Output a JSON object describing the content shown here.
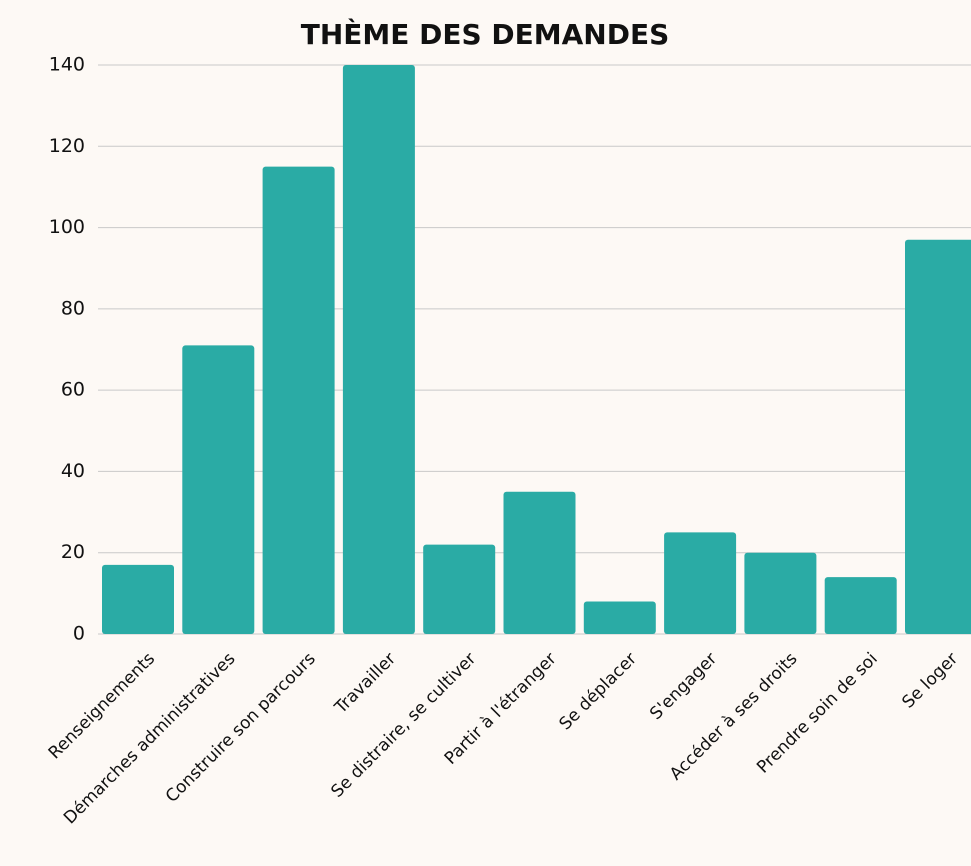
{
  "chart_data": {
    "type": "bar",
    "title": "THÈME DES DEMANDES",
    "categories": [
      "Renseignements",
      "Démarches administratives",
      "Construire son parcours",
      "Travailler",
      "Se distraire, se cultiver",
      "Partir à l'étranger",
      "Se déplacer",
      "S'engager",
      "Accéder à ses droits",
      "Prendre soin de soi",
      "Se loger"
    ],
    "values": [
      17,
      71,
      115,
      140,
      22,
      35,
      8,
      25,
      20,
      14,
      97
    ],
    "color": "#2aaba5",
    "ylim": [
      0,
      140
    ],
    "yticks": [
      0,
      20,
      40,
      60,
      80,
      100,
      120,
      140
    ],
    "grid": true
  }
}
